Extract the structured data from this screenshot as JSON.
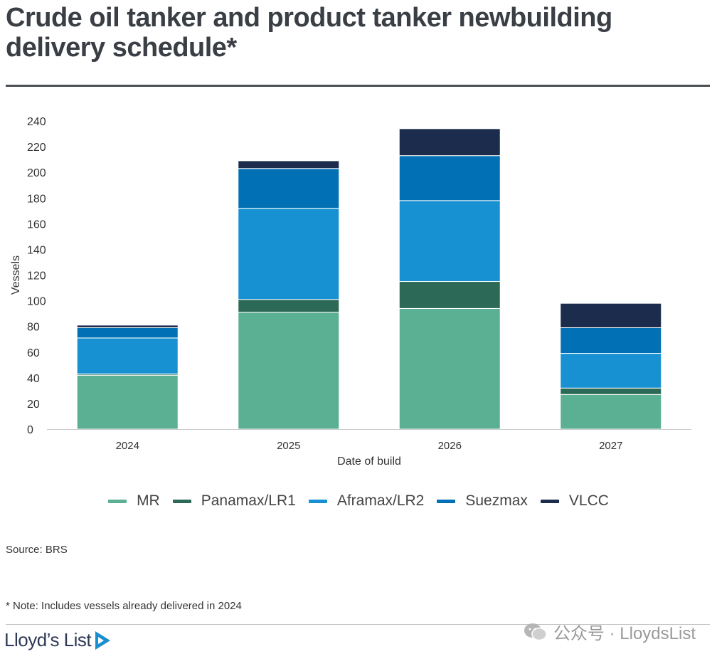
{
  "title": "Crude oil tanker and product tanker newbuilding delivery schedule*",
  "source": "Source: BRS",
  "note": "* Note: Includes vessels already delivered in 2024",
  "logo_text": "Lloyd’s List",
  "watermark_text": "公众号 · LloydsList",
  "colors": {
    "MR": "#5bb094",
    "Panamax/LR1": "#2c6a57",
    "Aframax/LR2": "#1891d2",
    "Suezmax": "#0270b4",
    "VLCC": "#1b2c4c",
    "rule": "#4a4f56",
    "logo_mark": "#1a8fd0"
  },
  "chart_data": {
    "type": "bar",
    "stacked": true,
    "title": "",
    "xlabel": "Date of build",
    "ylabel": "Vessels",
    "ylim": [
      0,
      240
    ],
    "yticks": [
      0,
      20,
      40,
      60,
      80,
      100,
      120,
      140,
      160,
      180,
      200,
      220,
      240
    ],
    "grid": false,
    "legend_position": "bottom",
    "categories": [
      "2024",
      "2025",
      "2026",
      "2027"
    ],
    "series": [
      {
        "name": "MR",
        "values": [
          42,
          91,
          94,
          27
        ]
      },
      {
        "name": "Panamax/LR1",
        "values": [
          1,
          10,
          21,
          5
        ]
      },
      {
        "name": "Aframax/LR2",
        "values": [
          28,
          71,
          63,
          27
        ]
      },
      {
        "name": "Suezmax",
        "values": [
          8,
          31,
          35,
          20
        ]
      },
      {
        "name": "VLCC",
        "values": [
          2,
          6,
          21,
          19
        ]
      }
    ]
  }
}
